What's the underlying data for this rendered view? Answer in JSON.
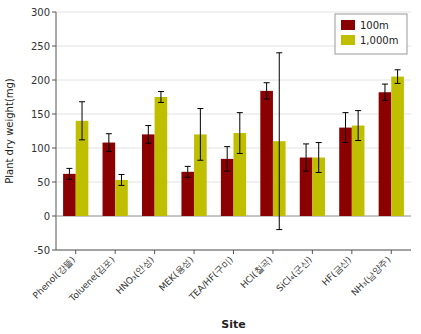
{
  "chart_data": {
    "type": "bar",
    "categories": [
      "Phenol(강뜰)",
      "Toluene(김포)",
      "HNO₃(안성)",
      "MEK(용성)",
      "TEA/HF(구미)",
      "HCl(칠곡)",
      "SiCl₄(군산)",
      "HF(금산)",
      "NH₃(남양주)"
    ],
    "series": [
      {
        "name": "100m",
        "color": "#8B0000",
        "values": [
          62,
          108,
          120,
          65,
          84,
          184,
          86,
          130,
          182
        ],
        "errors": [
          8,
          13,
          13,
          8,
          18,
          12,
          20,
          22,
          12
        ]
      },
      {
        "name": "1,000m",
        "color": "#BFBF00",
        "values": [
          140,
          53,
          175,
          120,
          122,
          110,
          86,
          133,
          205
        ],
        "errors": [
          28,
          8,
          8,
          38,
          30,
          130,
          22,
          22,
          10
        ]
      }
    ],
    "xlabel": "Site",
    "ylabel": "Plant dry weight(mg)",
    "ylim": [
      -50,
      300
    ],
    "yticks": [
      -50,
      0,
      50,
      100,
      150,
      200,
      250,
      300
    ],
    "grid": true,
    "legend": "upper right"
  }
}
